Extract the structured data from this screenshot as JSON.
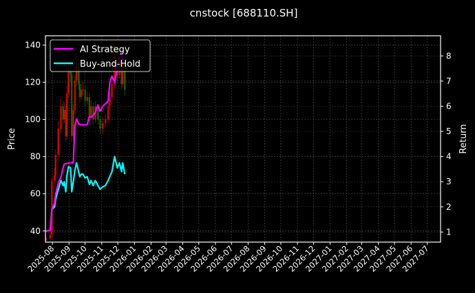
{
  "chart_data": {
    "type": "line",
    "title": "cnstock [688110.SH]",
    "ylabel_left": "Price",
    "ylabel_right": "Return",
    "ylim_left": [
      34,
      145
    ],
    "ylim_right": [
      0.6,
      8.8
    ],
    "yticks_left": [
      40,
      60,
      80,
      100,
      120,
      140
    ],
    "yticks_right": [
      1,
      2,
      3,
      4,
      5,
      6,
      7,
      8
    ],
    "xlim": [
      "2025-07-19",
      "2027-07-26"
    ],
    "xticks": [
      "2025-08",
      "2025-09",
      "2025-10",
      "2025-11",
      "2025-12",
      "2026-01",
      "2026-02",
      "2026-03",
      "2026-04",
      "2026-05",
      "2026-06",
      "2026-07",
      "2026-08",
      "2026-09",
      "2026-10",
      "2026-11",
      "2026-12",
      "2027-01",
      "2027-02",
      "2027-03",
      "2027-04",
      "2027-05",
      "2027-06",
      "2027-07"
    ],
    "grid": true,
    "legend_position": "top-left",
    "colors": {
      "background": "#000000",
      "up": "#ff0000",
      "down": "#008000",
      "strategy": "#ff00ff",
      "buyhold": "#00ffff"
    },
    "dates": [
      "2025-07-20",
      "2025-07-28",
      "2025-07-31",
      "2025-08-05",
      "2025-08-07",
      "2025-08-12",
      "2025-08-17",
      "2025-08-21",
      "2025-08-23",
      "2025-08-26",
      "2025-08-28",
      "2025-08-31",
      "2025-09-04",
      "2025-09-06",
      "2025-09-09",
      "2025-09-12",
      "2025-09-15",
      "2025-09-19",
      "2025-09-21",
      "2025-09-24",
      "2025-09-27",
      "2025-10-01",
      "2025-10-05",
      "2025-10-09",
      "2025-10-12",
      "2025-10-16",
      "2025-10-20",
      "2025-10-25",
      "2025-10-29",
      "2025-11-03",
      "2025-11-08",
      "2025-11-13",
      "2025-11-16",
      "2025-11-20",
      "2025-11-25",
      "2025-11-30",
      "2025-12-04",
      "2025-12-08",
      "2025-12-10",
      "2025-12-14"
    ],
    "candles_ohlc": [
      [
        35,
        38,
        34,
        36
      ],
      [
        36,
        40,
        35,
        38
      ],
      [
        38,
        69,
        37,
        67
      ],
      [
        67,
        74,
        64,
        70
      ],
      [
        70,
        84,
        68,
        81
      ],
      [
        81,
        99,
        79,
        95
      ],
      [
        95,
        111,
        93,
        107
      ],
      [
        107,
        110,
        97,
        100
      ],
      [
        100,
        109,
        98,
        105
      ],
      [
        105,
        107,
        88,
        91
      ],
      [
        91,
        118,
        89,
        114
      ],
      [
        114,
        130,
        112,
        126
      ],
      [
        126,
        129,
        120,
        124
      ],
      [
        124,
        126,
        88,
        91
      ],
      [
        91,
        108,
        89,
        105
      ],
      [
        105,
        124,
        103,
        121
      ],
      [
        121,
        134,
        118,
        131
      ],
      [
        131,
        132,
        116,
        119
      ],
      [
        119,
        121,
        109,
        112
      ],
      [
        112,
        119,
        110,
        116
      ],
      [
        116,
        120,
        113,
        116
      ],
      [
        116,
        118,
        107,
        110
      ],
      [
        110,
        115,
        108,
        112
      ],
      [
        112,
        114,
        99,
        102
      ],
      [
        102,
        110,
        100,
        107
      ],
      [
        107,
        109,
        97,
        100
      ],
      [
        100,
        110,
        98,
        107
      ],
      [
        107,
        108,
        97,
        100
      ],
      [
        100,
        102,
        92,
        95
      ],
      [
        95,
        101,
        92,
        98
      ],
      [
        98,
        103,
        96,
        100
      ],
      [
        100,
        110,
        98,
        107
      ],
      [
        107,
        115,
        105,
        112
      ],
      [
        112,
        122,
        110,
        119
      ],
      [
        119,
        143,
        117,
        140
      ],
      [
        140,
        141,
        121,
        124
      ],
      [
        124,
        134,
        122,
        131
      ],
      [
        131,
        133,
        116,
        119
      ],
      [
        119,
        134,
        117,
        131
      ],
      [
        131,
        133,
        113,
        116
      ]
    ],
    "series": [
      {
        "name": "AI Strategy",
        "values": [
          1.03,
          1.08,
          1.9,
          2.15,
          2.5,
          2.95,
          3.2,
          3.55,
          3.7,
          3.72,
          3.73,
          3.74,
          3.75,
          3.76,
          3.76,
          5.23,
          5.5,
          5.3,
          5.28,
          5.26,
          5.26,
          5.26,
          5.26,
          5.6,
          5.55,
          5.65,
          5.75,
          6.05,
          5.8,
          6.0,
          6.1,
          6.2,
          6.95,
          7.2,
          6.95,
          7.5,
          7.9,
          8.2,
          7.8,
          7.9
        ]
      },
      {
        "name": "Buy-and-Hold",
        "values": [
          1.03,
          1.08,
          1.9,
          2.0,
          2.3,
          2.7,
          3.05,
          2.85,
          3.0,
          2.6,
          3.25,
          3.6,
          3.55,
          2.6,
          3.0,
          3.45,
          3.75,
          3.4,
          3.2,
          3.3,
          3.3,
          3.15,
          3.2,
          2.9,
          3.05,
          2.85,
          3.05,
          2.85,
          2.7,
          2.8,
          2.85,
          3.05,
          3.2,
          3.4,
          4.0,
          3.55,
          3.75,
          3.4,
          3.75,
          3.3
        ]
      }
    ]
  }
}
